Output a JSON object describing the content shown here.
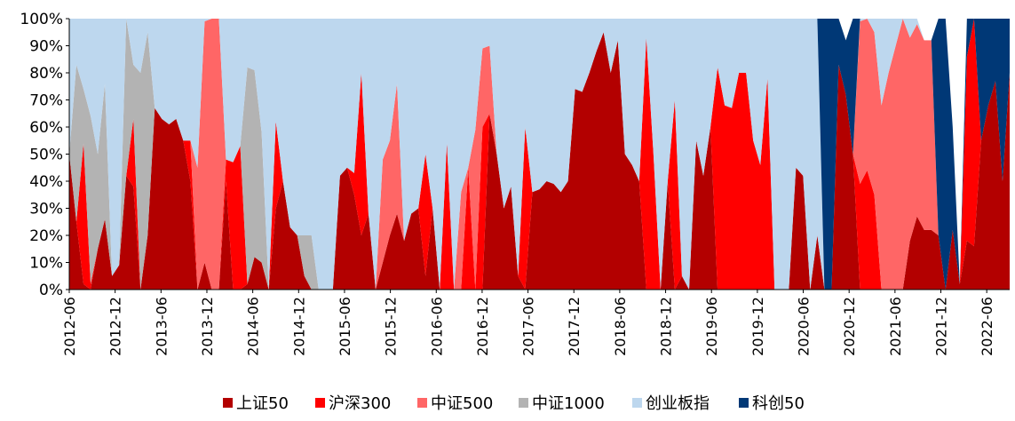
{
  "chart_data": {
    "type": "area",
    "stacked": true,
    "normalized": true,
    "title": "",
    "xlabel": "",
    "ylabel": "",
    "ylim": [
      0,
      1
    ],
    "yticks": [
      "0%",
      "10%",
      "20%",
      "30%",
      "40%",
      "50%",
      "60%",
      "70%",
      "80%",
      "90%",
      "100%"
    ],
    "xtick_labels": [
      "2012-06",
      "2012-12",
      "2013-06",
      "2013-12",
      "2014-06",
      "2014-12",
      "2015-06",
      "2015-12",
      "2016-06",
      "2016-12",
      "2017-06",
      "2017-12",
      "2018-06",
      "2018-12",
      "2019-06",
      "2019-12",
      "2020-06",
      "2020-12",
      "2021-06",
      "2021-12",
      "2022-06"
    ],
    "x_start": "2012-06",
    "x_end": "2022-09",
    "legend_position": "bottom",
    "grid": false,
    "series": [
      {
        "name": "上证50",
        "color": "#B30000",
        "values": [
          0.5,
          0.25,
          0.02,
          0.0,
          0.15,
          0.26,
          0.05,
          0.09,
          0.42,
          0.38,
          0.0,
          0.2,
          0.67,
          0.63,
          0.61,
          0.63,
          0.55,
          0.4,
          0.0,
          0.1,
          0.0,
          0.0,
          0.4,
          0.0,
          0.0,
          0.02,
          0.12,
          0.1,
          0.0,
          0.3,
          0.4,
          0.23,
          0.2,
          0.05,
          0.0,
          0.0,
          0.0,
          0.0,
          0.42,
          0.45,
          0.35,
          0.2,
          0.28,
          0.0,
          0.1,
          0.2,
          0.28,
          0.18,
          0.28,
          0.3,
          0.05,
          0.3,
          0.0,
          0.0,
          0.0,
          0.0,
          0.0,
          0.0,
          0.0,
          0.65,
          0.5,
          0.3,
          0.38,
          0.05,
          0.0,
          0.36,
          0.37,
          0.4,
          0.39,
          0.36,
          0.4,
          0.74,
          0.73,
          0.8,
          0.88,
          0.95,
          0.8,
          0.92,
          0.5,
          0.46,
          0.4,
          0.0,
          0.0,
          0.0,
          0.4,
          0.0,
          0.05,
          0.0,
          0.55,
          0.42,
          0.6,
          0.0,
          0.0,
          0.0,
          0.0,
          0.0,
          0.0,
          0.0,
          0.0,
          0.0,
          0.0,
          0.0,
          0.45,
          0.42,
          0.0,
          0.2,
          0.0,
          0.0,
          0.83,
          0.72,
          0.5,
          0.0,
          0.0,
          0.0,
          0.0,
          0.0,
          0.0,
          0.0,
          0.18,
          0.27,
          0.22,
          0.22,
          0.2,
          0.0,
          0.22,
          0.02,
          0.18,
          0.16,
          0.55,
          0.68,
          0.77,
          0.4,
          0.8
        ]
      },
      {
        "name": "沪深300",
        "color": "#FF0000",
        "values": [
          0.0,
          0.0,
          0.52,
          0.02,
          0.0,
          0.0,
          0.0,
          0.0,
          0.0,
          0.25,
          0.0,
          0.0,
          0.0,
          0.0,
          0.0,
          0.0,
          0.0,
          0.15,
          0.0,
          0.0,
          0.0,
          0.0,
          0.08,
          0.47,
          0.53,
          0.0,
          0.0,
          0.0,
          0.0,
          0.32,
          0.0,
          0.0,
          0.0,
          0.0,
          0.0,
          0.0,
          0.0,
          0.0,
          0.0,
          0.0,
          0.08,
          0.6,
          0.0,
          0.0,
          0.0,
          0.0,
          0.0,
          0.0,
          0.0,
          0.0,
          0.45,
          0.0,
          0.0,
          0.54,
          0.0,
          0.0,
          0.45,
          0.0,
          0.6,
          0.0,
          0.0,
          0.0,
          0.0,
          0.0,
          0.6,
          0.0,
          0.0,
          0.0,
          0.0,
          0.0,
          0.0,
          0.0,
          0.0,
          0.0,
          0.0,
          0.0,
          0.0,
          0.0,
          0.0,
          0.0,
          0.0,
          0.93,
          0.5,
          0.0,
          0.0,
          0.7,
          0.0,
          0.0,
          0.0,
          0.0,
          0.0,
          0.82,
          0.68,
          0.67,
          0.8,
          0.8,
          0.55,
          0.46,
          0.78,
          0.0,
          0.0,
          0.0,
          0.0,
          0.0,
          0.0,
          0.0,
          0.0,
          0.0,
          0.0,
          0.0,
          0.0,
          0.39,
          0.44,
          0.35,
          0.0,
          0.0,
          0.0,
          0.0,
          0.0,
          0.0,
          0.0,
          0.0,
          0.0,
          0.0,
          0.0,
          0.0,
          0.68,
          0.98,
          0.0,
          0.0,
          0.0,
          0.0,
          0.0,
          0.0,
          0.0
        ]
      },
      {
        "name": "中证500",
        "color": "#FF6666",
        "values": [
          0.0,
          0.0,
          0.0,
          0.0,
          0.0,
          0.0,
          0.0,
          0.0,
          0.0,
          0.0,
          0.0,
          0.0,
          0.0,
          0.0,
          0.0,
          0.0,
          0.0,
          0.0,
          0.45,
          0.89,
          1.0,
          1.0,
          0.0,
          0.0,
          0.0,
          0.0,
          0.0,
          0.0,
          0.0,
          0.0,
          0.0,
          0.0,
          0.0,
          0.0,
          0.0,
          0.0,
          0.0,
          0.0,
          0.0,
          0.0,
          0.0,
          0.0,
          0.0,
          0.0,
          0.38,
          0.35,
          0.48,
          0.0,
          0.0,
          0.0,
          0.0,
          0.0,
          0.0,
          0.0,
          0.0,
          0.36,
          0.0,
          0.59,
          0.29,
          0.25,
          0.0,
          0.0,
          0.0,
          0.0,
          0.0,
          0.0,
          0.0,
          0.0,
          0.0,
          0.0,
          0.0,
          0.0,
          0.0,
          0.0,
          0.0,
          0.0,
          0.0,
          0.0,
          0.0,
          0.0,
          0.0,
          0.0,
          0.0,
          0.0,
          0.0,
          0.0,
          0.0,
          0.0,
          0.0,
          0.0,
          0.0,
          0.0,
          0.0,
          0.0,
          0.0,
          0.0,
          0.0,
          0.0,
          0.0,
          0.0,
          0.0,
          0.0,
          0.0,
          0.0,
          0.0,
          0.0,
          0.0,
          0.0,
          0.0,
          0.0,
          0.0,
          0.6,
          0.56,
          0.6,
          0.68,
          0.8,
          0.9,
          1.0,
          0.75,
          0.71,
          0.7,
          0.7,
          0.0,
          0.0,
          0.0,
          0.0,
          0.0,
          0.0,
          0.0,
          0.0,
          0.0,
          0.0,
          0.0
        ]
      },
      {
        "name": "中证1000",
        "color": "#B3B3B3",
        "values": [
          0.0,
          0.58,
          0.2,
          0.62,
          0.35,
          0.5,
          0.0,
          0.0,
          0.58,
          0.2,
          0.8,
          0.75,
          0.0,
          0.0,
          0.0,
          0.0,
          0.0,
          0.0,
          0.0,
          0.0,
          0.0,
          0.0,
          0.0,
          0.0,
          0.0,
          0.8,
          0.69,
          0.48,
          0.0,
          0.0,
          0.0,
          0.0,
          0.0,
          0.15,
          0.2,
          0.0,
          0.0,
          0.0,
          0.0,
          0.0,
          0.0,
          0.0,
          0.0,
          0.0,
          0.0,
          0.0,
          0.0,
          0.0,
          0.0,
          0.0,
          0.0,
          0.0,
          0.0,
          0.0,
          0.0,
          0.0,
          0.0,
          0.0,
          0.0,
          0.0,
          0.0,
          0.0,
          0.0,
          0.0,
          0.0,
          0.0,
          0.0,
          0.0,
          0.0,
          0.0,
          0.0,
          0.0,
          0.0,
          0.0,
          0.0,
          0.0,
          0.0,
          0.0,
          0.0,
          0.0,
          0.0,
          0.0,
          0.0,
          0.0,
          0.0,
          0.0,
          0.0,
          0.0,
          0.0,
          0.0,
          0.0,
          0.0,
          0.0,
          0.0,
          0.0,
          0.0,
          0.0,
          0.0,
          0.0,
          0.0,
          0.0,
          0.0,
          0.0,
          0.0,
          0.0,
          0.0,
          0.0,
          0.0,
          0.0,
          0.0,
          0.0,
          0.0,
          0.0,
          0.0,
          0.0,
          0.0,
          0.0,
          0.0,
          0.0,
          0.0,
          0.0,
          0.0,
          0.0,
          0.0,
          0.0,
          0.0,
          0.0,
          0.0,
          0.0,
          0.0,
          0.0,
          0.0,
          0.0,
          0.0,
          0.0
        ]
      },
      {
        "name": "创业板指",
        "color": "#BDD7EE",
        "values": [
          0.5,
          0.17,
          0.28,
          0.38,
          0.5,
          0.24,
          0.95,
          0.91,
          0.0,
          0.17,
          0.2,
          0.05,
          0.33,
          0.37,
          0.39,
          0.37,
          0.45,
          0.45,
          0.55,
          0.01,
          0.0,
          0.0,
          0.52,
          0.53,
          0.47,
          0.18,
          0.19,
          0.42,
          1.0,
          0.38,
          0.6,
          0.77,
          0.8,
          0.8,
          0.8,
          1.0,
          1.0,
          1.0,
          0.58,
          0.55,
          0.57,
          0.2,
          0.72,
          1.0,
          0.52,
          0.45,
          0.24,
          0.82,
          0.72,
          0.7,
          0.5,
          0.7,
          1.0,
          0.46,
          1.0,
          0.64,
          0.55,
          0.41,
          0.11,
          0.1,
          0.5,
          0.7,
          0.62,
          0.95,
          0.4,
          0.64,
          0.63,
          0.6,
          0.61,
          0.64,
          0.6,
          0.26,
          0.27,
          0.2,
          0.12,
          0.05,
          0.2,
          0.08,
          0.5,
          0.54,
          0.6,
          0.07,
          0.5,
          1.0,
          0.6,
          0.3,
          0.95,
          1.0,
          0.45,
          0.58,
          0.4,
          0.18,
          0.32,
          0.33,
          0.2,
          0.2,
          0.45,
          0.54,
          0.22,
          1.0,
          1.0,
          1.0,
          0.55,
          0.58,
          1.0,
          0.8,
          0.0,
          0.0,
          0.0,
          0.0,
          0.0,
          0.01,
          0.0,
          0.05,
          0.32,
          0.2,
          0.1,
          0.0,
          0.07,
          0.02,
          0.0,
          0.0,
          0.0,
          0.0,
          0.0,
          0.0,
          0.0,
          0.0,
          0.0,
          0.0,
          0.0,
          0.0,
          0.0,
          0.0,
          0.0
        ]
      },
      {
        "name": "科创50",
        "color": "#003876",
        "values": [
          0.0,
          0.0,
          0.0,
          0.0,
          0.0,
          0.0,
          0.0,
          0.0,
          0.0,
          0.0,
          0.0,
          0.0,
          0.0,
          0.0,
          0.0,
          0.0,
          0.0,
          0.0,
          0.0,
          0.0,
          0.0,
          0.0,
          0.0,
          0.0,
          0.0,
          0.0,
          0.0,
          0.0,
          0.0,
          0.0,
          0.0,
          0.0,
          0.0,
          0.0,
          0.0,
          0.0,
          0.0,
          0.0,
          0.0,
          0.0,
          0.0,
          0.0,
          0.0,
          0.0,
          0.0,
          0.0,
          0.0,
          0.0,
          0.0,
          0.0,
          0.0,
          0.0,
          0.0,
          0.0,
          0.0,
          0.0,
          0.0,
          0.0,
          0.0,
          0.0,
          0.0,
          0.0,
          0.0,
          0.0,
          0.0,
          0.0,
          0.0,
          0.0,
          0.0,
          0.0,
          0.0,
          0.0,
          0.0,
          0.0,
          0.0,
          0.0,
          0.0,
          0.0,
          0.0,
          0.0,
          0.0,
          0.0,
          0.0,
          0.0,
          0.0,
          0.0,
          0.0,
          0.0,
          0.0,
          0.0,
          0.0,
          0.0,
          0.0,
          0.0,
          0.0,
          0.0,
          0.0,
          0.0,
          0.0,
          0.0,
          0.0,
          0.0,
          0.0,
          0.0,
          0.0,
          0.0,
          1.0,
          1.0,
          0.17,
          0.2,
          0.5,
          0.0,
          0.0,
          0.0,
          0.0,
          0.0,
          0.0,
          0.0,
          0.0,
          0.0,
          0.0,
          0.0,
          0.98,
          1.0,
          0.38,
          0.0,
          0.32,
          0.02,
          0.82,
          0.84,
          0.23,
          0.6,
          0.2
        ]
      }
    ]
  }
}
